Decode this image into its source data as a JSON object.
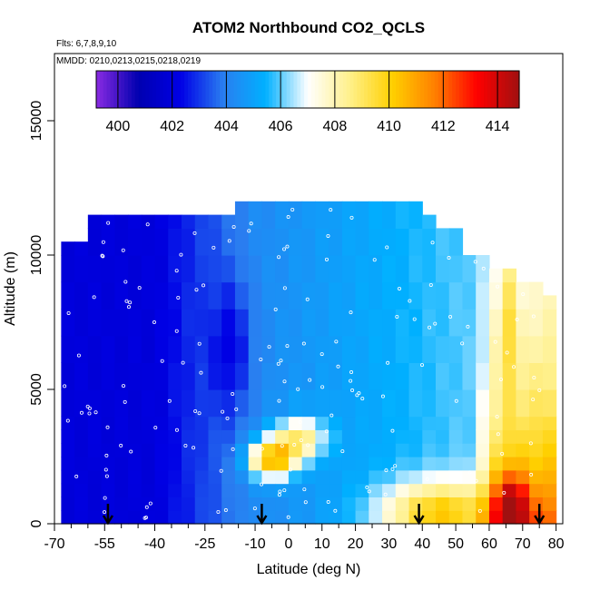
{
  "chart_data": {
    "type": "heatmap",
    "title": "ATOM2 Northbound CO2_QCLS",
    "flights_note": "Flts: 6,7,8,9,10",
    "dates_note": "MMDD: 0210,0213,0215,0218,0219",
    "xlabel": "Latitude (deg N)",
    "ylabel": "Altitude (m)",
    "xlim": [
      -70,
      82
    ],
    "ylim": [
      0,
      17500
    ],
    "x_ticks": [
      -70,
      -55,
      -40,
      -25,
      -10,
      0,
      10,
      20,
      30,
      40,
      50,
      60,
      70,
      80
    ],
    "x_minor_ticks": [
      -65,
      -60,
      -50,
      -45,
      -35,
      -30,
      -20,
      -15,
      -5,
      5,
      15,
      25,
      35,
      45,
      55,
      65,
      75
    ],
    "y_ticks": [
      0,
      5000,
      10000,
      15000
    ],
    "colorbar": {
      "range": [
        399.2,
        414.8
      ],
      "ticks": [
        400,
        402,
        404,
        406,
        408,
        410,
        412,
        414
      ],
      "colors": [
        "#8a2be2",
        "#0000b0",
        "#0000e6",
        "#2a7ef0",
        "#00b0ff",
        "#ffffff",
        "#fff08a",
        "#ffd000",
        "#ff8000",
        "#ff0000",
        "#a01010"
      ]
    },
    "curtain": {
      "lat_edges": [
        -68,
        -64,
        -60,
        -56,
        -52,
        -48,
        -44,
        -40,
        -36,
        -32,
        -28,
        -24,
        -20,
        -16,
        -12,
        -8,
        -4,
        0,
        4,
        8,
        12,
        16,
        20,
        24,
        28,
        32,
        36,
        40,
        44,
        48,
        52,
        56,
        60,
        64,
        68,
        72,
        76,
        80
      ],
      "alt_edges": [
        0,
        500,
        1000,
        1500,
        2000,
        2500,
        3000,
        3500,
        4000,
        5000,
        6000,
        7000,
        8000,
        9000,
        10000,
        11000,
        12000
      ],
      "top_altitude": [
        10500,
        10500,
        11500,
        11500,
        11500,
        11500,
        11500,
        11500,
        11500,
        11500,
        11500,
        11500,
        11500,
        12000,
        12000,
        12000,
        12000,
        12000,
        12000,
        12000,
        12000,
        12000,
        12000,
        12000,
        12000,
        12000,
        12000,
        11500,
        11000,
        11000,
        10000,
        10000,
        9500,
        9500,
        9000,
        9000,
        8500
      ]
    },
    "profile_arrows_lat": [
      -54,
      -8,
      39,
      75
    ]
  }
}
